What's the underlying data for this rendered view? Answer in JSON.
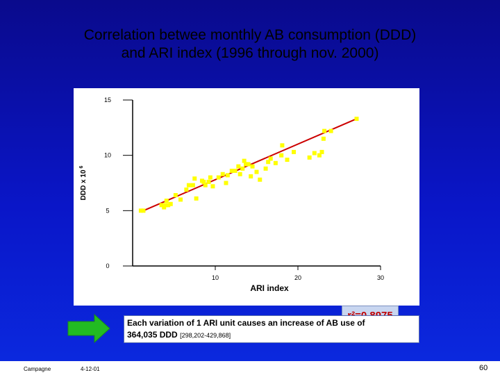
{
  "title": {
    "line1": "Correlation betwee monthly AB consumption (DDD)",
    "line2": "and ARI index (1996 through nov. 2000)"
  },
  "annotation": "r²=0.8975",
  "note": {
    "line1": "Each variation of 1 ARI unit causes an increase of AB use of",
    "line2": "364,035 DDD",
    "line2_small": "[298,202-429,868]"
  },
  "footer": {
    "left": "Campagne",
    "date": "4-12-01",
    "page": "60"
  },
  "colors": {
    "background": "#0a16c8",
    "points": "#ffff00",
    "trendline": "#cc0000",
    "annotation_text": "#c00000"
  },
  "arrow": {
    "icon": "right-arrow-icon",
    "color": "#22bb22"
  },
  "chart_data": {
    "type": "scatter",
    "xlabel": "ARI index",
    "ylabel": "DDD x 10",
    "ylabel_superscript": "6",
    "xlim": [
      0,
      30
    ],
    "ylim": [
      0,
      15
    ],
    "xticks": [
      10,
      20,
      30
    ],
    "yticks": [
      0,
      5,
      10,
      15
    ],
    "grid": false,
    "points": [
      [
        1.0,
        5.0
      ],
      [
        1.3,
        5.0
      ],
      [
        3.5,
        5.5
      ],
      [
        3.8,
        5.3
      ],
      [
        4.0,
        5.5
      ],
      [
        4.3,
        5.5
      ],
      [
        4.6,
        5.6
      ],
      [
        4.1,
        5.9
      ],
      [
        5.2,
        6.4
      ],
      [
        5.8,
        6.0
      ],
      [
        6.5,
        6.9
      ],
      [
        6.8,
        7.3
      ],
      [
        7.3,
        7.3
      ],
      [
        7.5,
        7.9
      ],
      [
        7.7,
        6.1
      ],
      [
        8.4,
        7.7
      ],
      [
        8.6,
        7.6
      ],
      [
        8.8,
        7.3
      ],
      [
        9.2,
        7.6
      ],
      [
        9.4,
        8.0
      ],
      [
        9.7,
        7.2
      ],
      [
        10.4,
        8.0
      ],
      [
        10.9,
        8.3
      ],
      [
        11.3,
        7.5
      ],
      [
        11.5,
        8.2
      ],
      [
        12.0,
        8.6
      ],
      [
        12.4,
        8.6
      ],
      [
        12.8,
        9.0
      ],
      [
        13.0,
        8.3
      ],
      [
        13.3,
        8.8
      ],
      [
        13.5,
        9.5
      ],
      [
        13.7,
        9.2
      ],
      [
        14.0,
        9.2
      ],
      [
        14.3,
        8.1
      ],
      [
        14.5,
        9.0
      ],
      [
        15.0,
        8.5
      ],
      [
        15.4,
        7.8
      ],
      [
        16.1,
        8.8
      ],
      [
        16.4,
        9.4
      ],
      [
        16.7,
        9.7
      ],
      [
        17.3,
        9.3
      ],
      [
        18.0,
        10.0
      ],
      [
        18.1,
        10.9
      ],
      [
        18.7,
        9.6
      ],
      [
        19.5,
        10.3
      ],
      [
        21.4,
        9.8
      ],
      [
        22.0,
        10.2
      ],
      [
        22.6,
        10.0
      ],
      [
        22.9,
        10.3
      ],
      [
        23.1,
        11.5
      ],
      [
        23.2,
        12.2
      ],
      [
        24.0,
        12.2
      ],
      [
        27.1,
        13.3
      ]
    ],
    "trendline": {
      "from": [
        1.0,
        4.9
      ],
      "to": [
        27.1,
        13.3
      ]
    }
  }
}
